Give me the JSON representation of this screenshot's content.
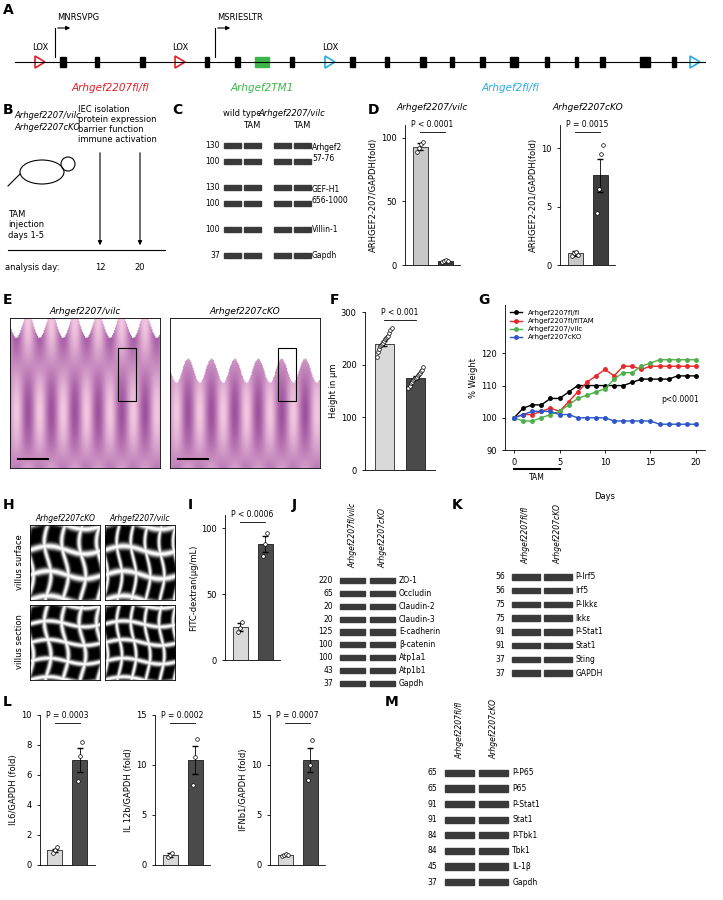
{
  "panel_labels": [
    "A",
    "B",
    "C",
    "D",
    "E",
    "F",
    "G",
    "H",
    "I",
    "J",
    "K",
    "L",
    "M"
  ],
  "diagram": {
    "lox_labels": [
      "LOX",
      "LOX",
      "LOX"
    ],
    "start_sites": [
      "MNRSVPG",
      "MSRIESLTR"
    ],
    "alleles": [
      {
        "text": "Arhgef2207fl/fl",
        "color": "#e41e26"
      },
      {
        "text": "Arhgef2TM1",
        "color": "#3db54a"
      },
      {
        "text": "Arhgef2fl/fl",
        "color": "#29abe2"
      }
    ]
  },
  "schematic": {
    "mice": [
      "Arhgef2207/vilc",
      "Arhgef2207cKO"
    ],
    "treatment": "TAM\ninjection\ndays 1-5",
    "readouts": [
      "IEC isolation",
      "protein expression",
      "barrier function",
      "immune activation"
    ],
    "analysis_label": "analysis day:",
    "analysis_days": [
      12,
      20
    ]
  },
  "blot_C": {
    "groups": [
      "wild type",
      "Arhgef2207/vilc"
    ],
    "treatment": "TAM",
    "rows": [
      {
        "name": "Arhgef2\n57-76",
        "mw": [
          130,
          100
        ]
      },
      {
        "name": "GEF-H1\n656-1000",
        "mw": [
          130,
          100
        ]
      },
      {
        "name": "Villin-1",
        "mw": [
          100
        ]
      },
      {
        "name": "Gapdh",
        "mw": [
          37
        ]
      }
    ]
  },
  "images_E": {
    "titles": [
      "Arhgef2207/vilc",
      "Arhgef2207cKO"
    ]
  },
  "images_H": {
    "columns": [
      "Arhgef2207cKO",
      "Arhgef2207/vilc"
    ],
    "rows": [
      "villus surface",
      "villus section"
    ]
  },
  "blot_J": {
    "columns": [
      "Arhgef2207fl/vilc",
      "Arhgef2207cKO"
    ],
    "rows": [
      {
        "name": "ZO-1",
        "mw": 220
      },
      {
        "name": "Occludin",
        "mw": 65
      },
      {
        "name": "Claudin-2",
        "mw": 20
      },
      {
        "name": "Claudin-3",
        "mw": 20
      },
      {
        "name": "E-cadherin",
        "mw": 125
      },
      {
        "name": "β-catenin",
        "mw": 100
      },
      {
        "name": "Atp1a1",
        "mw": 100
      },
      {
        "name": "Atp1b1",
        "mw": 43
      },
      {
        "name": "Gapdh",
        "mw": 37
      }
    ]
  },
  "blot_K": {
    "columns": [
      "Arhgef2207fl/fl",
      "Arhgef2207cKO"
    ],
    "rows": [
      {
        "name": "P-Irf5",
        "mw": 56
      },
      {
        "name": "Irf5",
        "mw": 56
      },
      {
        "name": "P-Ikkε",
        "mw": 75
      },
      {
        "name": "Ikkε",
        "mw": 75
      },
      {
        "name": "P-Stat1",
        "mw": 91
      },
      {
        "name": "Stat1",
        "mw": 91
      },
      {
        "name": "Sting",
        "mw": 37
      },
      {
        "name": "GAPDH",
        "mw": 37
      }
    ]
  },
  "blot_M": {
    "columns": [
      "Arhgef2207fl/fl",
      "Arhgef2207cKO"
    ],
    "rows": [
      {
        "name": "P-P65",
        "mw": 65
      },
      {
        "name": "P65",
        "mw": 65
      },
      {
        "name": "P-Stat1",
        "mw": 91
      },
      {
        "name": "Stat1",
        "mw": 91
      },
      {
        "name": "P-Tbk1",
        "mw": 84
      },
      {
        "name": "Tbk1",
        "mw": 84
      },
      {
        "name": "IL-1β",
        "mw": 45
      },
      {
        "name": "Gapdh",
        "mw": 37
      }
    ]
  },
  "chart_data": [
    {
      "type": "bar",
      "title": "Arhgef2207/vilc",
      "y_label": "ARHGEF2-207/GAPDH(fold)",
      "categories": [
        null,
        null
      ],
      "values": [
        93,
        3
      ],
      "errors": [
        2.5,
        1
      ],
      "points": [
        [
          89,
          92,
          95,
          97
        ],
        [
          2,
          3,
          4,
          3
        ]
      ],
      "colors": [
        "#c8c8c8",
        "#3c3c3c"
      ],
      "ylim": [
        0,
        110
      ],
      "yticks": [
        0,
        50,
        100
      ],
      "annotation": "P < 0.0001",
      "tick_labels": "y"
    },
    {
      "type": "bar",
      "title": "Arhgef2207cKO",
      "y_label": "ARHGEF2-201/GAPDH(fold)",
      "categories": [
        null,
        null
      ],
      "values": [
        1,
        7.7
      ],
      "errors": [
        0.2,
        1.4
      ],
      "points": [
        [
          0.8,
          1.0,
          1.1,
          0.9
        ],
        [
          4.5,
          6.5,
          9.5,
          10.3
        ]
      ],
      "colors": [
        "#c8c8c8",
        "#3c3c3c"
      ],
      "ylim": [
        0,
        12
      ],
      "yticks": [
        0,
        5,
        10
      ],
      "annotation": "P = 0.0015",
      "tick_labels": "y"
    },
    {
      "type": "bar",
      "y_label": "Height in µm",
      "categories": [
        null,
        null
      ],
      "values": [
        240,
        175
      ],
      "errors": [
        4,
        3
      ],
      "points": [
        [
          215,
          225,
          230,
          235,
          238,
          240,
          242,
          245,
          248,
          250,
          252,
          255,
          260,
          265,
          270
        ],
        [
          155,
          160,
          165,
          168,
          170,
          172,
          174,
          175,
          177,
          180,
          182,
          185,
          188,
          190,
          195
        ]
      ],
      "colors": [
        "#d9d9d9",
        "#4a4a4a"
      ],
      "ylim": [
        0,
        300
      ],
      "yticks": [
        0,
        100,
        200,
        300
      ],
      "annotation": "P < 0.001",
      "tick_labels": "y"
    },
    {
      "type": "line",
      "x": [
        0,
        1,
        2,
        3,
        4,
        5,
        6,
        7,
        8,
        9,
        10,
        11,
        12,
        13,
        14,
        15,
        16,
        17,
        18,
        19,
        20
      ],
      "series": [
        {
          "name": "Arhgef2207fl/fl",
          "color": "#000000",
          "values": [
            100,
            103,
            104,
            104,
            106,
            106,
            108,
            110,
            110,
            110,
            110,
            110,
            110,
            111,
            112,
            112,
            112,
            112,
            113,
            113,
            113
          ]
        },
        {
          "name": "Arhgef2207fl/flTAM",
          "color": "#e8282b",
          "values": [
            100,
            101,
            101,
            102,
            103,
            102,
            105,
            108,
            111,
            113,
            115,
            113,
            116,
            116,
            115,
            116,
            116,
            116,
            116,
            116,
            116
          ]
        },
        {
          "name": "Arhgef2207/vilc",
          "color": "#4daf4a",
          "values": [
            100,
            99,
            99,
            100,
            101,
            102,
            104,
            106,
            107,
            108,
            109,
            112,
            114,
            114,
            116,
            117,
            118,
            118,
            118,
            118,
            118
          ]
        },
        {
          "name": "Arhgef2207cKO",
          "color": "#2b55c8",
          "values": [
            100,
            101,
            102,
            102,
            102,
            101,
            101,
            100,
            100,
            100,
            100,
            99,
            99,
            99,
            99,
            99,
            98,
            98,
            98,
            98,
            98
          ]
        }
      ],
      "xlim": [
        -1,
        21
      ],
      "xticks": [
        0,
        5,
        10,
        15,
        20
      ],
      "ylim": [
        90,
        135
      ],
      "yticks": [
        90,
        100,
        110,
        120
      ],
      "x_label": "Days",
      "y_label": "% Weight",
      "legend": "upper left",
      "marker": "o",
      "annotation": "p<0.0001",
      "tam": {
        "text": "TAM",
        "from": 0,
        "to": 5
      }
    },
    {
      "type": "bar",
      "y_label": "FITC-dextran(µg/mL)",
      "categories": [
        null,
        null
      ],
      "values": [
        25,
        88
      ],
      "errors": [
        3,
        6
      ],
      "points": [
        [
          21,
          24,
          29
        ],
        [
          79,
          88,
          96
        ]
      ],
      "colors": [
        "#d9d9d9",
        "#4a4a4a"
      ],
      "ylim": [
        0,
        110
      ],
      "yticks": [
        0,
        50,
        100
      ],
      "annotation": "P < 0.0006",
      "tick_labels": "y"
    },
    {
      "type": "bar",
      "y_label": "IL6/GAPDH (fold)",
      "categories": [
        null,
        null
      ],
      "values": [
        1,
        7
      ],
      "errors": [
        0.1,
        0.8
      ],
      "points": [
        [
          0.8,
          1.0,
          1.2
        ],
        [
          5.6,
          7.3,
          8.2
        ]
      ],
      "colors": [
        "#d9d9d9",
        "#4a4a4a"
      ],
      "ylim": [
        0,
        10
      ],
      "yticks": [
        0,
        2,
        4,
        6,
        8,
        10
      ],
      "annotation": "P = 0.0003",
      "tick_labels": "y"
    },
    {
      "type": "bar",
      "y_label": "IL 12b/GAPDH (fold)",
      "categories": [
        null,
        null
      ],
      "values": [
        1,
        10.5
      ],
      "errors": [
        0.2,
        1.4
      ],
      "points": [
        [
          0.8,
          1.0,
          1.2
        ],
        [
          8,
          10.8,
          12.6
        ]
      ],
      "colors": [
        "#d9d9d9",
        "#4a4a4a"
      ],
      "ylim": [
        0,
        15
      ],
      "yticks": [
        0,
        5,
        10,
        15
      ],
      "annotation": "P = 0.0002",
      "tick_labels": "y"
    },
    {
      "type": "bar",
      "y_label": "IFNb1/GAPDH (fold)",
      "categories": [
        null,
        null
      ],
      "values": [
        1,
        10.5
      ],
      "errors": [
        0.1,
        1.2
      ],
      "points": [
        [
          0.9,
          1.0,
          1.1,
          1.0
        ],
        [
          8.5,
          10,
          12.5
        ]
      ],
      "colors": [
        "#d9d9d9",
        "#4a4a4a"
      ],
      "ylim": [
        0,
        15
      ],
      "yticks": [
        0,
        5,
        10,
        15
      ],
      "annotation": "P = 0.0007",
      "tick_labels": "y"
    }
  ]
}
